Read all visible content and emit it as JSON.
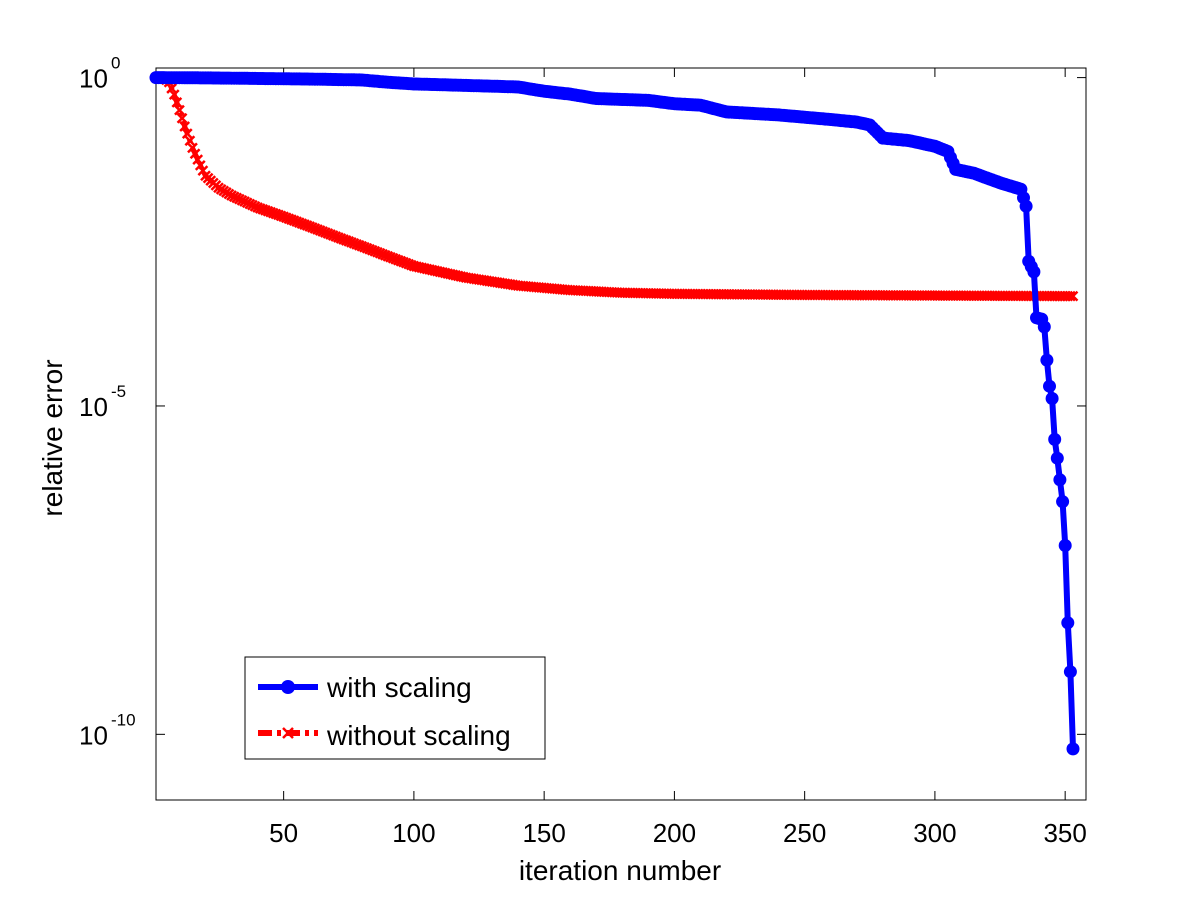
{
  "chart_data": {
    "type": "line",
    "title": "",
    "xlabel": "iteration number",
    "ylabel": "relative error",
    "xlim": [
      1,
      358
    ],
    "ylim": [
      1e-11,
      1.4
    ],
    "yscale": "log",
    "grid": false,
    "legend_position": "bottom-left",
    "x_ticks": [
      50,
      100,
      150,
      200,
      250,
      300,
      350
    ],
    "x_tick_labels": [
      "50",
      "100",
      "150",
      "200",
      "250",
      "300",
      "350"
    ],
    "y_ticks": [
      {
        "value": 1,
        "base": "10",
        "exponent": "0"
      },
      {
        "value": 1e-05,
        "base": "10",
        "exponent": "-5"
      },
      {
        "value": 1e-10,
        "base": "10",
        "exponent": "-10"
      }
    ],
    "series": [
      {
        "name": "with scaling",
        "color": "#0000ff",
        "marker": "circle",
        "line_style": "solid",
        "points": [
          [
            1,
            1.0
          ],
          [
            20,
            0.99
          ],
          [
            40,
            0.97
          ],
          [
            60,
            0.95
          ],
          [
            80,
            0.92
          ],
          [
            90,
            0.85
          ],
          [
            100,
            0.8
          ],
          [
            120,
            0.76
          ],
          [
            140,
            0.72
          ],
          [
            150,
            0.62
          ],
          [
            160,
            0.56
          ],
          [
            170,
            0.48
          ],
          [
            190,
            0.45
          ],
          [
            200,
            0.4
          ],
          [
            210,
            0.38
          ],
          [
            220,
            0.3
          ],
          [
            240,
            0.27
          ],
          [
            260,
            0.23
          ],
          [
            270,
            0.21
          ],
          [
            275,
            0.19
          ],
          [
            280,
            0.12
          ],
          [
            290,
            0.11
          ],
          [
            300,
            0.09
          ],
          [
            305,
            0.075
          ],
          [
            308,
            0.04
          ],
          [
            315,
            0.035
          ],
          [
            325,
            0.025
          ],
          [
            333,
            0.02
          ],
          [
            335,
            0.011
          ],
          [
            336,
            0.0016
          ],
          [
            338,
            0.0011
          ],
          [
            339,
            0.00022
          ],
          [
            341,
            0.00021
          ],
          [
            342,
            0.00016
          ],
          [
            343,
            5e-05
          ],
          [
            344,
            2e-05
          ],
          [
            345,
            1.3e-05
          ],
          [
            346,
            3.1e-06
          ],
          [
            347,
            1.6e-06
          ],
          [
            348,
            7.5e-07
          ],
          [
            349,
            3.5e-07
          ],
          [
            350,
            7.5e-08
          ],
          [
            351,
            5e-09
          ],
          [
            352,
            9e-10
          ],
          [
            353,
            6e-11
          ]
        ]
      },
      {
        "name": "without scaling",
        "color": "#ff0000",
        "marker": "x",
        "line_style": "dash-dot",
        "points": [
          [
            1,
            1.0
          ],
          [
            4,
            1.0
          ],
          [
            6,
            0.85
          ],
          [
            8,
            0.55
          ],
          [
            10,
            0.32
          ],
          [
            12,
            0.18
          ],
          [
            15,
            0.085
          ],
          [
            18,
            0.046
          ],
          [
            20,
            0.032
          ],
          [
            25,
            0.021
          ],
          [
            30,
            0.016
          ],
          [
            40,
            0.0105
          ],
          [
            50,
            0.0076
          ],
          [
            60,
            0.0054
          ],
          [
            70,
            0.0038
          ],
          [
            80,
            0.0027
          ],
          [
            90,
            0.0019
          ],
          [
            100,
            0.00135
          ],
          [
            120,
            0.0009
          ],
          [
            140,
            0.00068
          ],
          [
            160,
            0.00058
          ],
          [
            180,
            0.00053
          ],
          [
            200,
            0.00051
          ],
          [
            250,
            0.00049
          ],
          [
            300,
            0.00048
          ],
          [
            353,
            0.00047
          ]
        ]
      }
    ]
  }
}
